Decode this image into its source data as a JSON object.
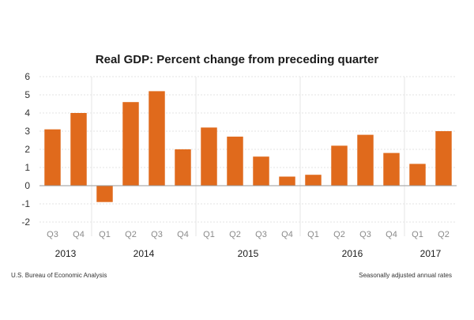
{
  "chart_data": {
    "type": "bar",
    "title": "Real GDP:  Percent change from preceding quarter",
    "categories": [
      "Q3",
      "Q4",
      "Q1",
      "Q2",
      "Q3",
      "Q4",
      "Q1",
      "Q2",
      "Q3",
      "Q4",
      "Q1",
      "Q2",
      "Q3",
      "Q4",
      "Q1",
      "Q2"
    ],
    "values": [
      3.1,
      4.0,
      -0.9,
      4.6,
      5.2,
      2.0,
      3.2,
      2.7,
      1.6,
      0.5,
      0.6,
      2.2,
      2.8,
      1.8,
      1.2,
      3.0
    ],
    "year_groups": [
      {
        "label": "2013",
        "start": 0,
        "end": 1
      },
      {
        "label": "2014",
        "start": 2,
        "end": 5
      },
      {
        "label": "2015",
        "start": 6,
        "end": 9
      },
      {
        "label": "2016",
        "start": 10,
        "end": 13
      },
      {
        "label": "2017",
        "start": 14,
        "end": 15
      }
    ],
    "ylim": [
      -2,
      6
    ],
    "yticks": [
      "-2",
      "-1",
      "0",
      "1",
      "2",
      "3",
      "4",
      "5",
      "6"
    ],
    "xlabel": "",
    "ylabel": "",
    "grid": true,
    "bar_color": "#e06a1c",
    "source_note": "U.S. Bureau of Economic Analysis",
    "units_note": "Seasonally adjusted annual rates"
  }
}
